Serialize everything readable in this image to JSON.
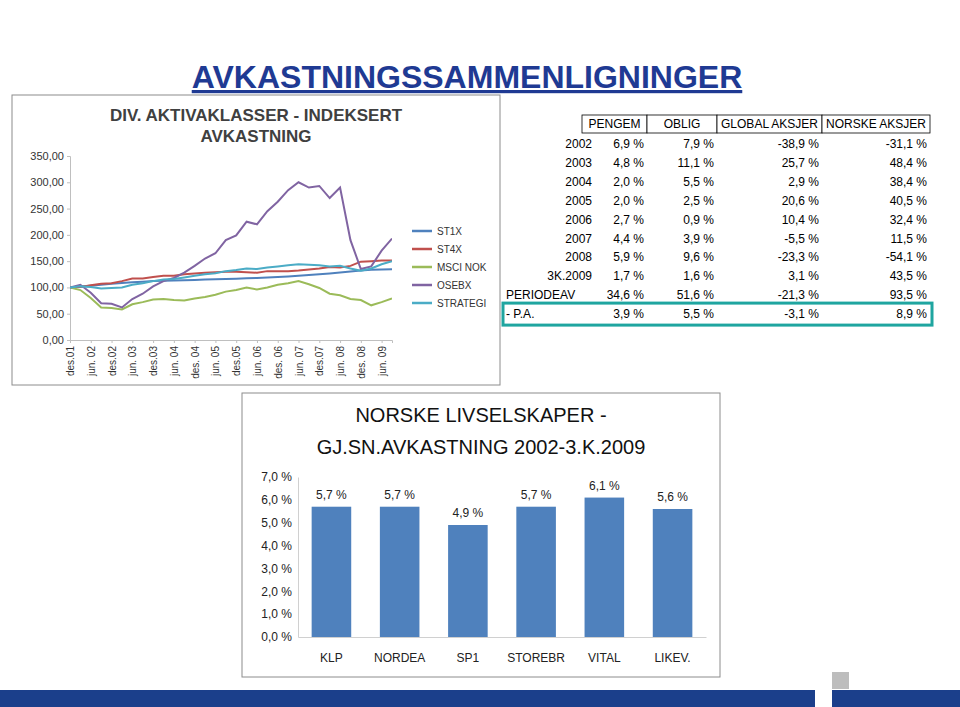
{
  "title": "AVKASTNINGSSAMMENLIGNINGER",
  "chart_data": [
    {
      "type": "line",
      "title": [
        "DIV. AKTIVAKLASSER - INDEKSERT",
        "AVKASTNING"
      ],
      "categories": [
        "des.01",
        null,
        "jun. 02",
        null,
        "des.02",
        null,
        "jun. 03",
        null,
        "des.03",
        null,
        "jun. 04",
        null,
        "des. 04",
        null,
        "jun. 05",
        null,
        "des.05",
        null,
        "jun. 06",
        null,
        "des. 06",
        null,
        "jun. 07",
        null,
        "des.07",
        null,
        "jun. 08",
        null,
        "des. 08",
        null,
        "jun. 09",
        null
      ],
      "series": [
        {
          "name": "ST1X",
          "color": "#4f81bd",
          "values": [
            100,
            101.6,
            103.3,
            105.1,
            106.9,
            108.3,
            109.7,
            110.9,
            112.0,
            112.6,
            113.1,
            113.7,
            114.3,
            114.9,
            115.4,
            116.0,
            116.6,
            117.3,
            118.1,
            118.9,
            119.7,
            120.9,
            122.2,
            123.6,
            125.0,
            126.7,
            128.4,
            130.4,
            132.4,
            133.4,
            134.1,
            134.6
          ]
        },
        {
          "name": "ST4X",
          "color": "#c0504d",
          "values": [
            100,
            101,
            104,
            107,
            107.9,
            112,
            117,
            117,
            119.9,
            122,
            122,
            125,
            126.5,
            128,
            129,
            130,
            129.6,
            129,
            128,
            131,
            130.8,
            131,
            132,
            134,
            135.9,
            139,
            138,
            141,
            149,
            150,
            151,
            151.4
          ]
        },
        {
          "name": "MSCI NOK",
          "color": "#9bbb59",
          "values": [
            100,
            95,
            80,
            62,
            61,
            58,
            68,
            72,
            77,
            78,
            76,
            75,
            79,
            82,
            86,
            92,
            95,
            100,
            96,
            100,
            105,
            108,
            112,
            106,
            99,
            88,
            85,
            78,
            76,
            66,
            72,
            79
          ]
        },
        {
          "name": "OSEBX",
          "color": "#8064a2",
          "values": [
            100,
            105,
            90,
            70,
            69,
            62,
            78,
            88,
            102,
            112,
            118,
            128,
            141,
            155,
            165,
            190,
            199,
            225,
            220,
            245,
            263,
            285,
            300,
            290,
            293,
            270,
            290,
            190,
            135,
            140,
            170,
            193
          ]
        },
        {
          "name": "STRATEGI",
          "color": "#4bacc6",
          "values": [
            100,
            102,
            101,
            98,
            99,
            100,
            105,
            108,
            112,
            115,
            116,
            119,
            122,
            125,
            127,
            131,
            133,
            136,
            135,
            138,
            140,
            142,
            144,
            143,
            142,
            140,
            141,
            136,
            132,
            136,
            144,
            150
          ]
        }
      ],
      "ylim": [
        0,
        350
      ],
      "yticks": [
        {
          "value": 0,
          "label": "0,00"
        },
        {
          "value": 50,
          "label": "50,00"
        },
        {
          "value": 100,
          "label": "100,00"
        },
        {
          "value": 150,
          "label": "150,00"
        },
        {
          "value": 200,
          "label": "200,00"
        },
        {
          "value": 250,
          "label": "250,00"
        },
        {
          "value": 300,
          "label": "300,00"
        },
        {
          "value": 350,
          "label": "350,00"
        }
      ],
      "grid": false,
      "legend": "right"
    },
    {
      "type": "bar",
      "title": [
        "NORSKE LIVSELSKAPER -",
        "GJ.SN.AVKASTNING 2002-3.K.2009"
      ],
      "categories": [
        "KLP",
        "NORDEA",
        "SP1",
        "STOREBR",
        "VITAL",
        "LIKEV."
      ],
      "values": [
        5.7,
        5.7,
        4.9,
        5.7,
        6.1,
        5.6
      ],
      "value_labels": [
        "5,7 %",
        "5,7 %",
        "4,9 %",
        "5,7 %",
        "6,1 %",
        "5,6 %"
      ],
      "color": "#4f81bd",
      "ylim": [
        0,
        7
      ],
      "yticks": [
        {
          "value": 0,
          "label": "0,0 %"
        },
        {
          "value": 1,
          "label": "1,0 %"
        },
        {
          "value": 2,
          "label": "2,0 %"
        },
        {
          "value": 3,
          "label": "3,0 %"
        },
        {
          "value": 4,
          "label": "4,0 %"
        },
        {
          "value": 5,
          "label": "5,0 %"
        },
        {
          "value": 6,
          "label": "6,0 %"
        },
        {
          "value": 7,
          "label": "7,0 %"
        }
      ],
      "grid": false,
      "data_labels": true
    }
  ],
  "table": {
    "headers": [
      "PENGEM",
      "OBLIG",
      "GLOBAL AKSJER",
      "NORSKE AKSJER"
    ],
    "rows": [
      {
        "label": "2002",
        "cells": [
          "6,9 %",
          "7,9 %",
          "-38,9 %",
          "-31,1 %"
        ]
      },
      {
        "label": "2003",
        "cells": [
          "4,8 %",
          "11,1 %",
          "25,7 %",
          "48,4 %"
        ]
      },
      {
        "label": "2004",
        "cells": [
          "2,0 %",
          "5,5 %",
          "2,9 %",
          "38,4 %"
        ]
      },
      {
        "label": "2005",
        "cells": [
          "2,0 %",
          "2,5 %",
          "20,6 %",
          "40,5 %"
        ]
      },
      {
        "label": "2006",
        "cells": [
          "2,7 %",
          "0,9 %",
          "10,4 %",
          "32,4 %"
        ]
      },
      {
        "label": "2007",
        "cells": [
          "4,4 %",
          "3,9 %",
          "-5,5 %",
          "11,5 %"
        ]
      },
      {
        "label": "2008",
        "cells": [
          "5,9 %",
          "9,6 %",
          "-23,3 %",
          "-54,1 %"
        ]
      },
      {
        "label": "3K.2009",
        "cells": [
          "1,7 %",
          "1,6 %",
          "3,1 %",
          "43,5 %"
        ]
      },
      {
        "label": "PERIODEAV",
        "cells": [
          "34,6 %",
          "51,6 %",
          "-21,3 %",
          "93,5 %"
        ]
      },
      {
        "label": "- P.A.",
        "cells": [
          "3,9 %",
          "5,5 %",
          "-3,1 %",
          "8,9 %"
        ]
      }
    ]
  }
}
